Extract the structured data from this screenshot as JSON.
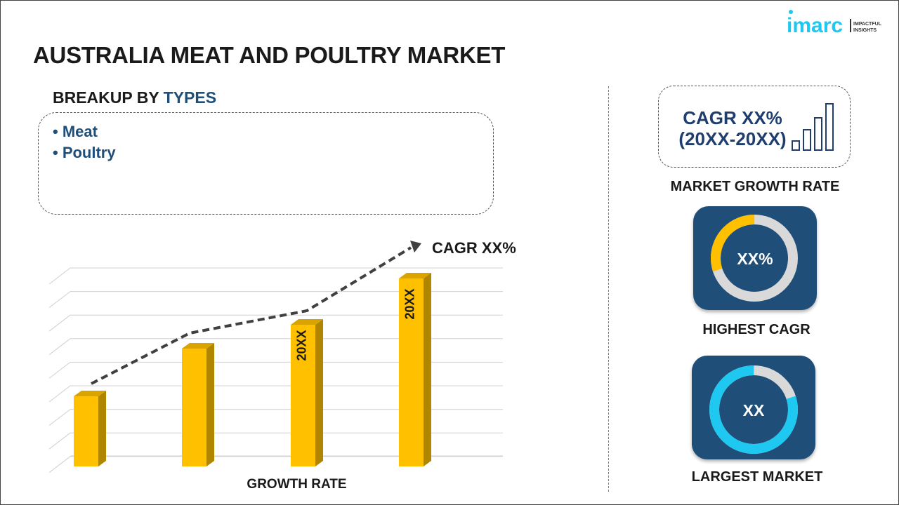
{
  "title": "AUSTRALIA MEAT AND POULTRY MARKET",
  "logo": {
    "brand": "imarc",
    "tagline": "IMPACTFUL INSIGHTS"
  },
  "breakup": {
    "prefix": "BREAKUP BY ",
    "highlight": "TYPES",
    "items": [
      "• Meat",
      "• Poultry"
    ]
  },
  "chart": {
    "cagr_label": "CAGR XX%",
    "x_label": "GROWTH RATE",
    "bar_labels": [
      "20XX",
      "20XX"
    ]
  },
  "growth": {
    "line1": "CAGR XX%",
    "line2": "(20XX-20XX)",
    "caption": "MARKET GROWTH RATE"
  },
  "highest": {
    "value": "XX%",
    "caption": "HIGHEST CAGR",
    "share": 0.3
  },
  "largest": {
    "value": "XX",
    "caption": "LARGEST MARKET",
    "share": 0.8
  },
  "colors": {
    "navy": "#1f4e79",
    "yellow": "#ffc000",
    "cyan": "#1ec8f0",
    "grey": "#d9d9d9"
  }
}
